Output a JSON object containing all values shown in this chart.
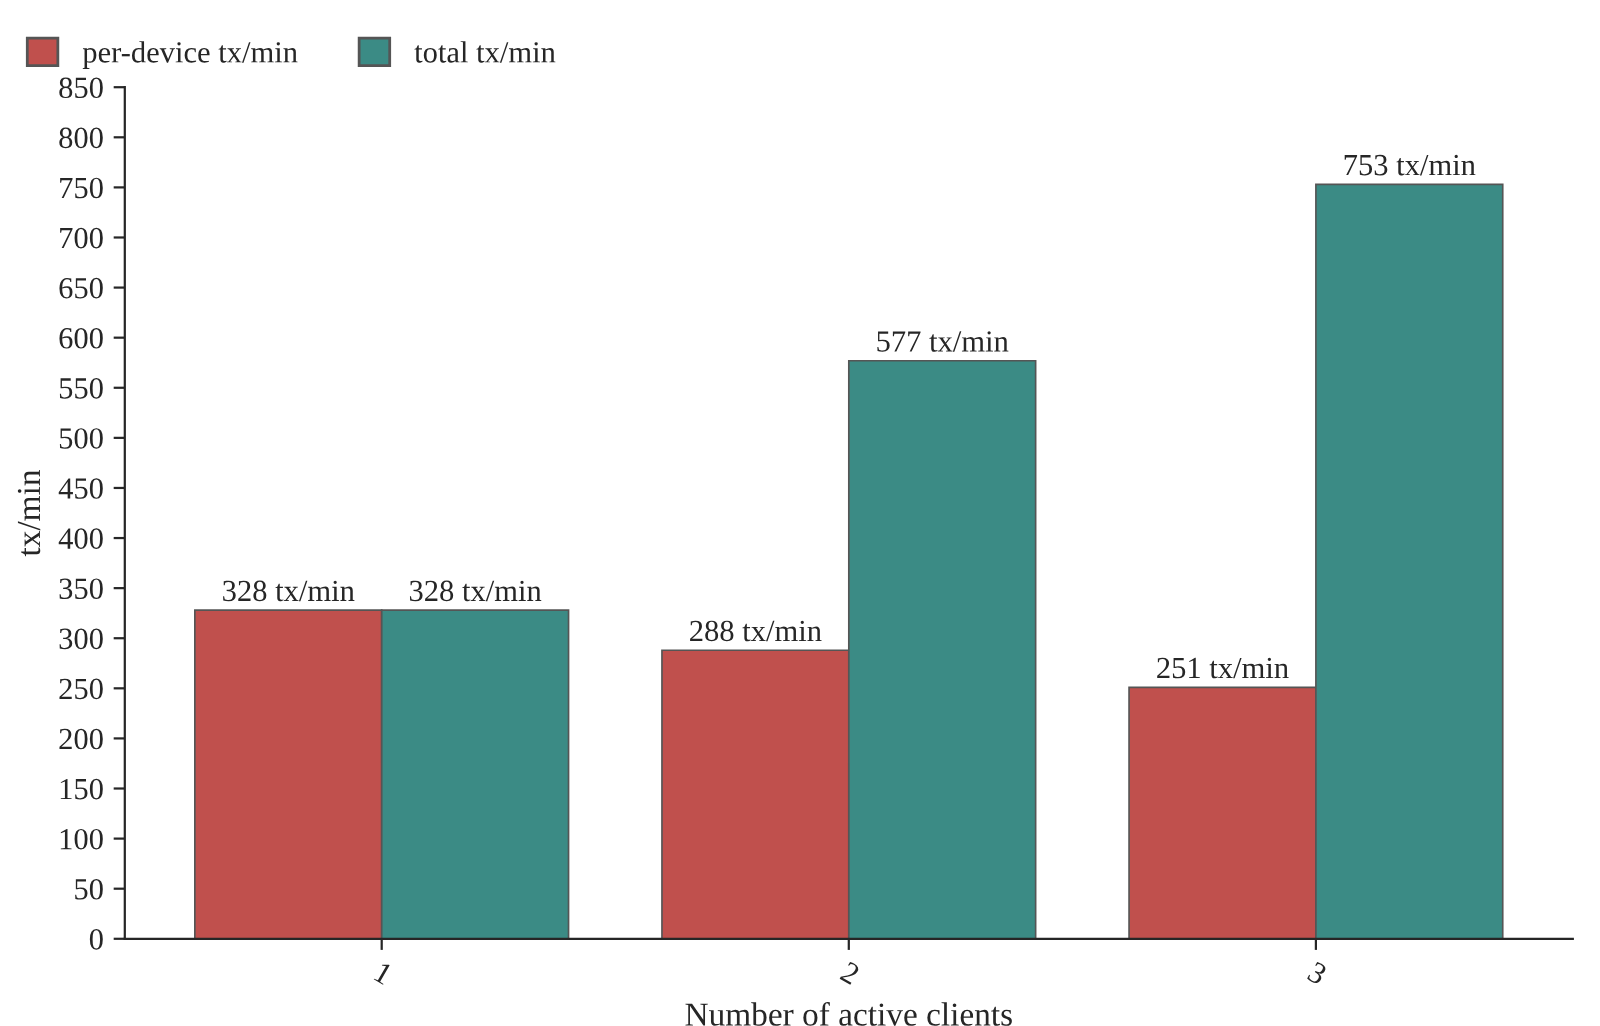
{
  "chart_data": {
    "type": "bar",
    "xlabel": "Number of active clients",
    "ylabel": "tx/min",
    "categories": [
      "1",
      "2",
      "3"
    ],
    "series": [
      {
        "name": "per-device tx/min",
        "color": "#c0504d",
        "values": [
          328,
          288,
          251
        ],
        "value_labels": [
          "328 tx/min",
          "288 tx/min",
          "251 tx/min"
        ]
      },
      {
        "name": "total tx/min",
        "color": "#3b8b85",
        "values": [
          328,
          577,
          753
        ],
        "value_labels": [
          "328 tx/min",
          "577 tx/min",
          "753 tx/min"
        ]
      }
    ],
    "ylim": [
      0,
      850
    ],
    "yticks": [
      0,
      50,
      100,
      150,
      200,
      250,
      300,
      350,
      400,
      450,
      500,
      550,
      600,
      650,
      700,
      750,
      800,
      850
    ],
    "grid": false,
    "legend": "top left"
  }
}
